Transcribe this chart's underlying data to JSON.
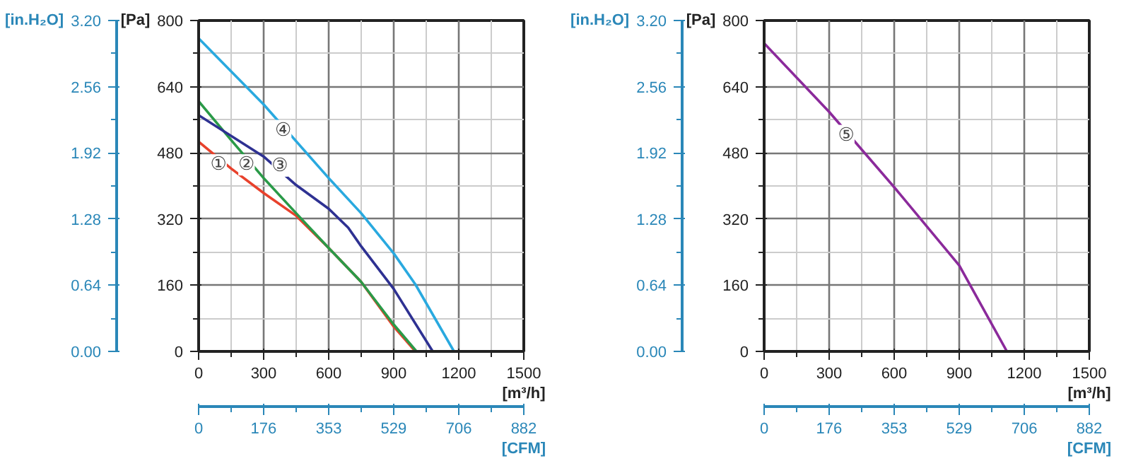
{
  "chart_data": [
    {
      "type": "line",
      "xlabel": "[m³/h]",
      "ylabel": "[Pa]",
      "y2label": "[in.H₂O]",
      "x2label": "[CFM]",
      "grid": true,
      "xlim": [
        0,
        1500
      ],
      "xticks": [
        0,
        300,
        600,
        900,
        1200,
        1500
      ],
      "ylim": [
        0,
        800
      ],
      "yticks": [
        0,
        160,
        320,
        480,
        640,
        800
      ],
      "y2lim": [
        0,
        3.2
      ],
      "y2ticks": [
        {
          "value": 0,
          "label": "0.00"
        },
        {
          "value": 0.64,
          "label": "0.64"
        },
        {
          "value": 1.28,
          "label": "1.28"
        },
        {
          "value": 1.92,
          "label": "1.92"
        },
        {
          "value": 2.56,
          "label": "2.56"
        },
        {
          "value": 3.2,
          "label": "3.20"
        }
      ],
      "x2lim": [
        0,
        882
      ],
      "x2ticks": [
        0,
        176,
        353,
        529,
        706,
        882
      ],
      "series": [
        {
          "color": "#e8412c",
          "x": [
            0,
            150,
            300,
            450,
            600,
            750,
            900,
            1000
          ],
          "values": [
            507,
            442,
            383,
            328,
            250,
            168,
            60,
            0
          ]
        },
        {
          "color": "#2a9a48",
          "x": [
            0,
            150,
            300,
            450,
            600,
            750,
            900,
            1005
          ],
          "values": [
            605,
            511,
            419,
            334,
            250,
            168,
            65,
            0
          ]
        },
        {
          "color": "#2e3192",
          "x": [
            0,
            300,
            450,
            600,
            690,
            750,
            900,
            1080
          ],
          "values": [
            571,
            471,
            402,
            345,
            299,
            254,
            151,
            0
          ]
        },
        {
          "color": "#29a9df",
          "x": [
            0,
            300,
            600,
            750,
            900,
            1000,
            1178
          ],
          "values": [
            757,
            597,
            419,
            334,
            237,
            162,
            0
          ]
        }
      ],
      "annotations": [
        {
          "text": "①",
          "x": 92,
          "y": 451
        },
        {
          "text": "②",
          "x": 221,
          "y": 451
        },
        {
          "text": "③",
          "x": 375,
          "y": 448
        },
        {
          "text": "④",
          "x": 390,
          "y": 534
        }
      ]
    },
    {
      "type": "line",
      "xlabel": "[m³/h]",
      "ylabel": "[Pa]",
      "y2label": "[in.H₂O]",
      "x2label": "[CFM]",
      "grid": true,
      "xlim": [
        0,
        1500
      ],
      "xticks": [
        0,
        300,
        600,
        900,
        1200,
        1500
      ],
      "ylim": [
        0,
        800
      ],
      "yticks": [
        0,
        160,
        320,
        480,
        640,
        800
      ],
      "y2lim": [
        0,
        3.2
      ],
      "y2ticks": [
        {
          "value": 0,
          "label": "0.00"
        },
        {
          "value": 0.64,
          "label": "0.64"
        },
        {
          "value": 1.28,
          "label": "1.28"
        },
        {
          "value": 1.92,
          "label": "1.92"
        },
        {
          "value": 2.56,
          "label": "2.56"
        },
        {
          "value": 3.2,
          "label": "3.20"
        }
      ],
      "x2lim": [
        0,
        882
      ],
      "x2ticks": [
        0,
        176,
        353,
        529,
        706,
        882
      ],
      "series": [
        {
          "color": "#8b2a9b",
          "x": [
            0,
            300,
            600,
            900,
            1120
          ],
          "values": [
            745,
            579,
            397,
            208,
            0
          ]
        }
      ],
      "annotations": [
        {
          "text": "⑤",
          "x": 379,
          "y": 522
        }
      ]
    }
  ]
}
